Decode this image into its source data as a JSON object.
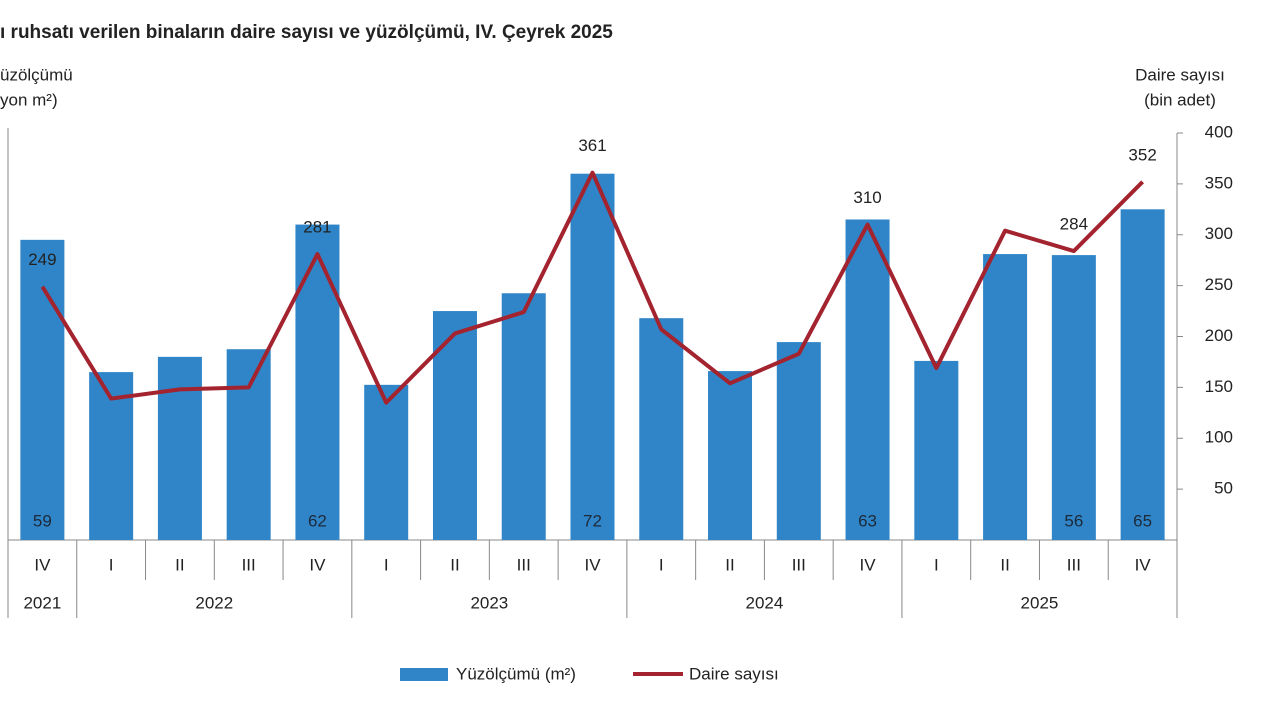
{
  "chart_data": {
    "type": "bar",
    "title": "ı ruhsatı verilen binaların daire sayısı ve yüzölçümü, IV. Çeyrek 2025",
    "y_label": [
      "üzölçümü",
      "yon m²)"
    ],
    "y2_label": [
      "Daire sayısı",
      "(bin adet)"
    ],
    "category_groups": [
      {
        "label": "2021",
        "categories": [
          "IV"
        ]
      },
      {
        "label": "2022",
        "categories": [
          "I",
          "II",
          "III",
          "IV"
        ]
      },
      {
        "label": "2023",
        "categories": [
          "I",
          "II",
          "III",
          "IV"
        ]
      },
      {
        "label": "2024",
        "categories": [
          "I",
          "II",
          "III",
          "IV"
        ]
      },
      {
        "label": "2025",
        "categories": [
          "I",
          "II",
          "III",
          "IV"
        ]
      }
    ],
    "ylim": [
      0,
      80
    ],
    "y2lim": [
      0,
      400
    ],
    "y2ticks": [
      50,
      100,
      150,
      200,
      250,
      300,
      350,
      400
    ],
    "legend": "bottom",
    "series": [
      {
        "name": "Yüzölçümü (m²)",
        "type": "bar",
        "color": "#2f85c7",
        "values": [
          59,
          33,
          36,
          37.5,
          62,
          30.5,
          45,
          48.5,
          72,
          43.6,
          33.2,
          38.9,
          63,
          35.2,
          56.2,
          56,
          65
        ],
        "value_labels": [
          "59",
          null,
          null,
          null,
          "62",
          null,
          null,
          null,
          "72",
          null,
          null,
          null,
          "63",
          null,
          null,
          "56",
          "65"
        ]
      },
      {
        "name": "Daire sayısı",
        "type": "line",
        "color": "#a3232f",
        "axis": "y2",
        "values": [
          249,
          139,
          148,
          150,
          281,
          135,
          203,
          224,
          361,
          207,
          154,
          183,
          310,
          169,
          304,
          284,
          352
        ],
        "value_labels": [
          "249",
          null,
          null,
          null,
          "281",
          null,
          null,
          null,
          "361",
          null,
          null,
          null,
          "310",
          null,
          null,
          "284",
          "352"
        ]
      }
    ]
  }
}
